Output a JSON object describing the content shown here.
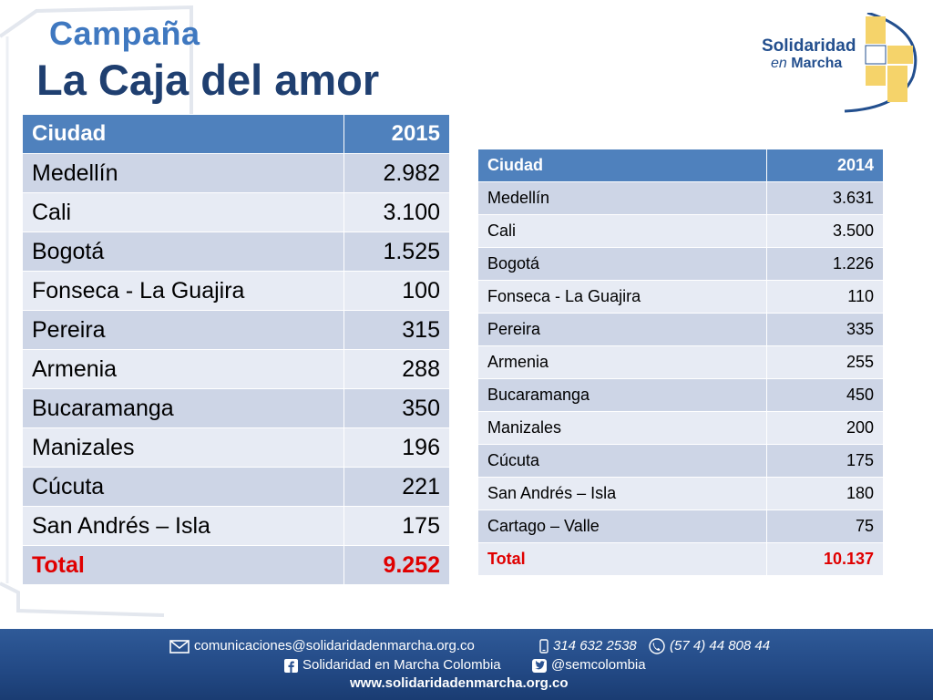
{
  "header": {
    "subtitle": "Campaña",
    "title": "La Caja del amor"
  },
  "logo": {
    "line1": "Solidaridad",
    "line2_en": "en",
    "line2_rest": "Marcha",
    "colors": {
      "blue": "#234f8e",
      "yellow": "#f5d36a"
    }
  },
  "table2015": {
    "headers": [
      "Ciudad",
      "2015"
    ],
    "rows": [
      [
        "Medellín",
        "2.982"
      ],
      [
        "Cali",
        "3.100"
      ],
      [
        "Bogotá",
        "1.525"
      ],
      [
        "Fonseca - La Guajira",
        "100"
      ],
      [
        "Pereira",
        "315"
      ],
      [
        "Armenia",
        "288"
      ],
      [
        "Bucaramanga",
        "350"
      ],
      [
        "Manizales",
        "196"
      ],
      [
        "Cúcuta",
        "221"
      ],
      [
        "San Andrés – Isla",
        "175"
      ]
    ],
    "total": [
      "Total",
      "9.252"
    ]
  },
  "table2014": {
    "headers": [
      "Ciudad",
      "2014"
    ],
    "rows": [
      [
        "Medellín",
        "3.631"
      ],
      [
        "Cali",
        "3.500"
      ],
      [
        "Bogotá",
        "1.226"
      ],
      [
        "Fonseca - La Guajira",
        "110"
      ],
      [
        "Pereira",
        "335"
      ],
      [
        "Armenia",
        "255"
      ],
      [
        "Bucaramanga",
        "450"
      ],
      [
        "Manizales",
        "200"
      ],
      [
        "Cúcuta",
        "175"
      ],
      [
        "San Andrés – Isla",
        "180"
      ],
      [
        "Cartago – Valle",
        "75"
      ]
    ],
    "total": [
      "Total",
      "10.137"
    ]
  },
  "footer": {
    "email": "comunicaciones@solidaridadenmarcha.org.co",
    "phone_mobile": "314 632 2538",
    "phone_landline": "(57 4) 44 808 44",
    "facebook": "Solidaridad en Marcha Colombia",
    "twitter": "@semcolombia",
    "website": "www.solidaridadenmarcha.org.co"
  },
  "colors": {
    "header_blue": "#4f81bd",
    "row_dark": "#cdd5e6",
    "row_light": "#e7ebf4",
    "total_red": "#e00000",
    "footer_blue": "#234a86"
  }
}
